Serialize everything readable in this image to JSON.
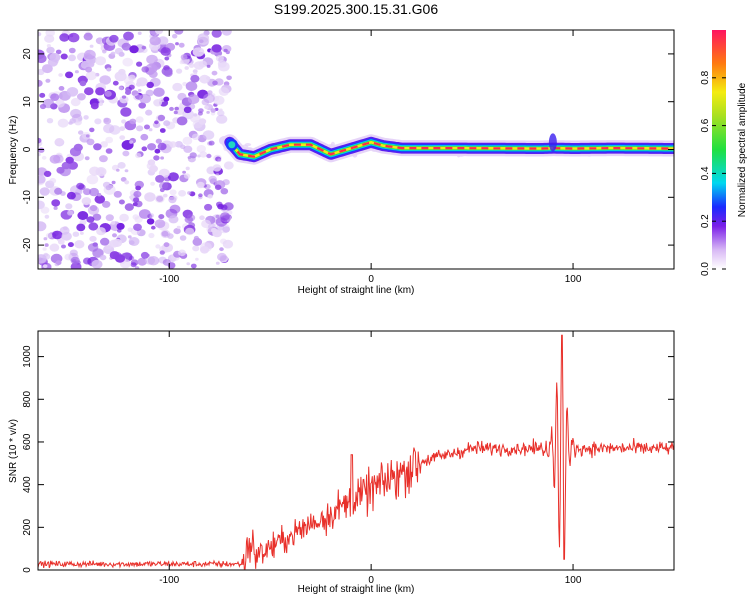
{
  "title": "S199.2025.300.15.31.G06",
  "chart_data": [
    {
      "type": "heatmap",
      "name": "spectrogram",
      "xlabel": "Height of straight line (km)",
      "ylabel": "Frequency (Hz)",
      "xlim": [
        -165,
        150
      ],
      "ylim": [
        -25,
        25
      ],
      "xticks": [
        -100,
        0,
        100
      ],
      "yticks": [
        -20,
        -10,
        0,
        10,
        20
      ],
      "noise_region_x": [
        -165,
        -72
      ],
      "signal_band": [
        [
          -70,
          1.5
        ],
        [
          -65,
          -1.0
        ],
        [
          -58,
          -1.5
        ],
        [
          -50,
          0.0
        ],
        [
          -40,
          1.0
        ],
        [
          -30,
          1.0
        ],
        [
          -20,
          -1.0
        ],
        [
          -12,
          0.0
        ],
        [
          -4,
          1.0
        ],
        [
          0,
          1.5
        ],
        [
          6,
          0.8
        ],
        [
          15,
          0.3
        ],
        [
          40,
          0.3
        ],
        [
          85,
          0.2
        ],
        [
          90,
          0.3
        ],
        [
          100,
          0.2
        ],
        [
          120,
          0.3
        ],
        [
          150,
          0.2
        ]
      ],
      "colorbar": {
        "label": "Normalized spectral amplitude",
        "ticks": [
          "0.0",
          "0.2",
          "0.4",
          "0.6",
          "0.8"
        ],
        "range": [
          0,
          1
        ]
      }
    },
    {
      "type": "line",
      "name": "snr",
      "xlabel": "Height of straight line (km)",
      "ylabel": "SNR (10 * v/v)",
      "xlim": [
        -165,
        150
      ],
      "ylim": [
        0,
        1120
      ],
      "xticks": [
        -100,
        0,
        100
      ],
      "yticks": [
        0,
        200,
        400,
        600,
        800,
        1000
      ],
      "color": "#e8302a",
      "series": [
        {
          "name": "SNR",
          "x": [
            -165,
            -140,
            -120,
            -100,
            -80,
            -65,
            -60,
            -50,
            -40,
            -30,
            -20,
            -10,
            0,
            10,
            20,
            30,
            50,
            70,
            88,
            92,
            94,
            96,
            98,
            100,
            110,
            130,
            150
          ],
          "y": [
            25,
            25,
            25,
            25,
            25,
            30,
            110,
            140,
            180,
            230,
            270,
            300,
            340,
            420,
            500,
            540,
            570,
            570,
            570,
            650,
            1100,
            60,
            700,
            580,
            580,
            580,
            580
          ]
        }
      ]
    }
  ]
}
